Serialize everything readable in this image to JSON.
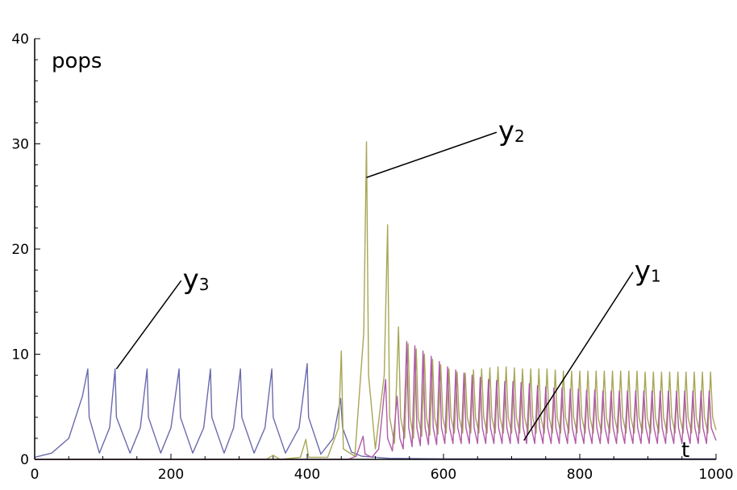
{
  "chart_data": {
    "type": "line",
    "ylabel": "pops",
    "xlabel": "t",
    "xlim": [
      0,
      1000
    ],
    "ylim": [
      0,
      40
    ],
    "x_ticks": [
      0,
      200,
      400,
      600,
      800,
      1000
    ],
    "y_ticks": [
      0,
      10,
      20,
      30,
      40
    ],
    "grid": false,
    "legend": "none",
    "colors": {
      "y1": "#b05aa8",
      "y2": "#a8a656",
      "y3": "#6a6aae"
    },
    "series": [
      {
        "name": "y3",
        "label_main": "y",
        "label_sub": "3",
        "values": [
          [
            0,
            0.2
          ],
          [
            25,
            0.6
          ],
          [
            50,
            2
          ],
          [
            70,
            6
          ],
          [
            78,
            8.6
          ],
          [
            80,
            4
          ],
          [
            95,
            0.6
          ],
          [
            110,
            3
          ],
          [
            118,
            8.6
          ],
          [
            120,
            4
          ],
          [
            140,
            0.6
          ],
          [
            155,
            3
          ],
          [
            165,
            8.6
          ],
          [
            167,
            4
          ],
          [
            185,
            0.6
          ],
          [
            200,
            3
          ],
          [
            212,
            8.6
          ],
          [
            214,
            4
          ],
          [
            232,
            0.6
          ],
          [
            248,
            3
          ],
          [
            258,
            8.6
          ],
          [
            260,
            4
          ],
          [
            278,
            0.6
          ],
          [
            292,
            3
          ],
          [
            302,
            8.6
          ],
          [
            304,
            4
          ],
          [
            322,
            0.6
          ],
          [
            338,
            3
          ],
          [
            348,
            8.6
          ],
          [
            350,
            4
          ],
          [
            368,
            0.6
          ],
          [
            388,
            3
          ],
          [
            400,
            9.1
          ],
          [
            402,
            4
          ],
          [
            420,
            0.5
          ],
          [
            438,
            2
          ],
          [
            449,
            5.8
          ],
          [
            452,
            3
          ],
          [
            465,
            0.7
          ],
          [
            480,
            0.3
          ],
          [
            520,
            0.1
          ],
          [
            600,
            0.05
          ],
          [
            1000,
            0.05
          ]
        ]
      },
      {
        "name": "y2",
        "label_main": "y",
        "label_sub": "2",
        "values": [
          [
            0,
            0
          ],
          [
            340,
            0
          ],
          [
            350,
            0.4
          ],
          [
            360,
            0
          ],
          [
            390,
            0.2
          ],
          [
            398,
            1.9
          ],
          [
            402,
            0.2
          ],
          [
            430,
            0.2
          ],
          [
            446,
            3
          ],
          [
            450,
            10.3
          ],
          [
            453,
            1
          ],
          [
            470,
            0.3
          ],
          [
            483,
            12
          ],
          [
            487,
            30.2
          ],
          [
            490,
            8
          ],
          [
            500,
            1
          ],
          [
            513,
            8
          ],
          [
            518,
            22.3
          ],
          [
            521,
            4
          ],
          [
            528,
            1.5
          ],
          [
            534,
            12.6
          ],
          [
            537,
            4
          ],
          [
            543,
            2
          ],
          [
            548,
            11
          ],
          [
            551,
            4
          ],
          [
            556,
            2
          ],
          [
            560,
            10.5
          ],
          [
            563,
            4
          ],
          [
            568,
            2.2
          ],
          [
            572,
            10
          ],
          [
            575,
            4
          ],
          [
            580,
            2.3
          ],
          [
            584,
            9.5
          ],
          [
            587,
            4
          ],
          [
            592,
            2.4
          ],
          [
            596,
            9
          ],
          [
            599,
            4
          ],
          [
            604,
            2.5
          ],
          [
            608,
            8.6
          ],
          [
            611,
            4
          ],
          [
            616,
            2.5
          ],
          [
            620,
            8.3
          ],
          [
            623,
            4
          ],
          [
            628,
            2.5
          ],
          [
            632,
            8.2
          ],
          [
            635,
            4
          ],
          [
            640,
            2.5
          ],
          [
            644,
            8.5
          ],
          [
            647,
            4
          ],
          [
            652,
            2.5
          ],
          [
            656,
            8.6
          ],
          [
            659,
            4
          ],
          [
            664,
            2.5
          ],
          [
            668,
            8.7
          ],
          [
            671,
            4
          ],
          [
            676,
            2.5
          ],
          [
            680,
            8.8
          ],
          [
            683,
            4
          ],
          [
            688,
            2.5
          ],
          [
            692,
            8.8
          ],
          [
            695,
            4
          ],
          [
            700,
            2.5
          ],
          [
            704,
            8.7
          ],
          [
            707,
            4
          ],
          [
            712,
            2.5
          ],
          [
            716,
            8.6
          ],
          [
            719,
            4
          ],
          [
            724,
            2.5
          ],
          [
            728,
            8.6
          ],
          [
            731,
            4
          ],
          [
            736,
            2.5
          ],
          [
            740,
            8.6
          ],
          [
            743,
            4
          ],
          [
            748,
            2.5
          ],
          [
            752,
            8.6
          ],
          [
            755,
            4
          ],
          [
            760,
            2.5
          ],
          [
            764,
            8.5
          ],
          [
            767,
            4
          ],
          [
            772,
            2.5
          ],
          [
            776,
            8.4
          ],
          [
            779,
            4
          ],
          [
            784,
            2.5
          ],
          [
            788,
            8.4
          ],
          [
            791,
            4
          ],
          [
            796,
            2.5
          ],
          [
            800,
            8.4
          ],
          [
            803,
            4
          ],
          [
            808,
            2.5
          ],
          [
            812,
            8.4
          ],
          [
            815,
            4
          ],
          [
            820,
            2.5
          ],
          [
            824,
            8.4
          ],
          [
            827,
            4
          ],
          [
            832,
            2.5
          ],
          [
            836,
            8.4
          ],
          [
            839,
            4
          ],
          [
            844,
            2.5
          ],
          [
            848,
            8.4
          ],
          [
            851,
            4
          ],
          [
            856,
            2.5
          ],
          [
            860,
            8.4
          ],
          [
            863,
            4
          ],
          [
            868,
            2.5
          ],
          [
            872,
            8.4
          ],
          [
            875,
            4
          ],
          [
            880,
            2.5
          ],
          [
            884,
            8.4
          ],
          [
            887,
            4
          ],
          [
            892,
            2.5
          ],
          [
            896,
            8.3
          ],
          [
            899,
            4
          ],
          [
            904,
            2.5
          ],
          [
            908,
            8.3
          ],
          [
            911,
            4
          ],
          [
            916,
            2.5
          ],
          [
            920,
            8.3
          ],
          [
            923,
            4
          ],
          [
            928,
            2.5
          ],
          [
            932,
            8.3
          ],
          [
            935,
            4
          ],
          [
            940,
            2.5
          ],
          [
            944,
            8.3
          ],
          [
            947,
            4
          ],
          [
            952,
            2.5
          ],
          [
            956,
            8.3
          ],
          [
            959,
            4
          ],
          [
            964,
            2.5
          ],
          [
            968,
            8.3
          ],
          [
            971,
            4
          ],
          [
            976,
            2.5
          ],
          [
            980,
            8.3
          ],
          [
            983,
            4
          ],
          [
            988,
            2.5
          ],
          [
            992,
            8.3
          ],
          [
            995,
            4
          ],
          [
            1000,
            2.8
          ]
        ]
      },
      {
        "name": "y1",
        "label_main": "y",
        "label_sub": "1",
        "values": [
          [
            0,
            0
          ],
          [
            460,
            0
          ],
          [
            472,
            0.3
          ],
          [
            482,
            2.2
          ],
          [
            485,
            0.5
          ],
          [
            495,
            0.2
          ],
          [
            505,
            1
          ],
          [
            515,
            7.6
          ],
          [
            518,
            2
          ],
          [
            525,
            0.8
          ],
          [
            532,
            6
          ],
          [
            536,
            2
          ],
          [
            541,
            1
          ],
          [
            546,
            11.2
          ],
          [
            549,
            3
          ],
          [
            554,
            1.2
          ],
          [
            558,
            10.8
          ],
          [
            561,
            3
          ],
          [
            566,
            1.3
          ],
          [
            570,
            10.3
          ],
          [
            573,
            3
          ],
          [
            578,
            1.4
          ],
          [
            582,
            9.8
          ],
          [
            585,
            3
          ],
          [
            590,
            1.4
          ],
          [
            594,
            9.3
          ],
          [
            597,
            3
          ],
          [
            602,
            1.5
          ],
          [
            606,
            8.8
          ],
          [
            609,
            3
          ],
          [
            614,
            1.5
          ],
          [
            618,
            8.5
          ],
          [
            621,
            3
          ],
          [
            626,
            1.5
          ],
          [
            630,
            8.2
          ],
          [
            633,
            3
          ],
          [
            638,
            1.5
          ],
          [
            642,
            8
          ],
          [
            645,
            3
          ],
          [
            650,
            1.5
          ],
          [
            654,
            7.8
          ],
          [
            657,
            3
          ],
          [
            662,
            1.5
          ],
          [
            666,
            7.6
          ],
          [
            669,
            3
          ],
          [
            674,
            1.5
          ],
          [
            678,
            7.5
          ],
          [
            681,
            3
          ],
          [
            686,
            1.5
          ],
          [
            690,
            7.4
          ],
          [
            693,
            3
          ],
          [
            698,
            1.5
          ],
          [
            702,
            7.4
          ],
          [
            705,
            3
          ],
          [
            710,
            1.5
          ],
          [
            714,
            7.3
          ],
          [
            717,
            3
          ],
          [
            722,
            1.5
          ],
          [
            726,
            7.2
          ],
          [
            729,
            3
          ],
          [
            734,
            1.5
          ],
          [
            738,
            7
          ],
          [
            741,
            3
          ],
          [
            746,
            1.5
          ],
          [
            750,
            6.9
          ],
          [
            753,
            3
          ],
          [
            758,
            1.5
          ],
          [
            762,
            6.8
          ],
          [
            765,
            3
          ],
          [
            770,
            1.5
          ],
          [
            774,
            6.8
          ],
          [
            777,
            3
          ],
          [
            782,
            1.5
          ],
          [
            786,
            6.7
          ],
          [
            789,
            3
          ],
          [
            794,
            1.5
          ],
          [
            798,
            6.7
          ],
          [
            801,
            3
          ],
          [
            806,
            1.5
          ],
          [
            810,
            6.6
          ],
          [
            813,
            3
          ],
          [
            818,
            1.5
          ],
          [
            822,
            6.6
          ],
          [
            825,
            3
          ],
          [
            830,
            1.5
          ],
          [
            834,
            6.5
          ],
          [
            837,
            3
          ],
          [
            842,
            1.5
          ],
          [
            846,
            6.5
          ],
          [
            849,
            3
          ],
          [
            854,
            1.5
          ],
          [
            858,
            6.5
          ],
          [
            861,
            3
          ],
          [
            866,
            1.5
          ],
          [
            870,
            6.5
          ],
          [
            873,
            3
          ],
          [
            878,
            1.5
          ],
          [
            882,
            6.5
          ],
          [
            885,
            3
          ],
          [
            890,
            1.5
          ],
          [
            894,
            6.5
          ],
          [
            897,
            3
          ],
          [
            902,
            1.5
          ],
          [
            906,
            6.5
          ],
          [
            909,
            3
          ],
          [
            914,
            1.5
          ],
          [
            918,
            6.5
          ],
          [
            921,
            3
          ],
          [
            926,
            1.5
          ],
          [
            930,
            6.5
          ],
          [
            933,
            3
          ],
          [
            938,
            1.5
          ],
          [
            942,
            6.5
          ],
          [
            945,
            3
          ],
          [
            950,
            1.5
          ],
          [
            954,
            6.5
          ],
          [
            957,
            3
          ],
          [
            962,
            1.5
          ],
          [
            966,
            6.5
          ],
          [
            969,
            3
          ],
          [
            974,
            1.5
          ],
          [
            978,
            6.5
          ],
          [
            981,
            3
          ],
          [
            986,
            1.5
          ],
          [
            990,
            6.5
          ],
          [
            993,
            3
          ],
          [
            1000,
            1.8
          ]
        ]
      }
    ],
    "annotations": [
      {
        "series": "y3",
        "point": [
          120,
          8.6
        ],
        "label_anchor": [
          215,
          17.0
        ]
      },
      {
        "series": "y2",
        "point": [
          487,
          26.8
        ],
        "label_anchor": [
          678,
          31.1
        ]
      },
      {
        "series": "y1",
        "point": [
          718,
          1.8
        ],
        "label_anchor": [
          878,
          17.8
        ]
      }
    ]
  }
}
